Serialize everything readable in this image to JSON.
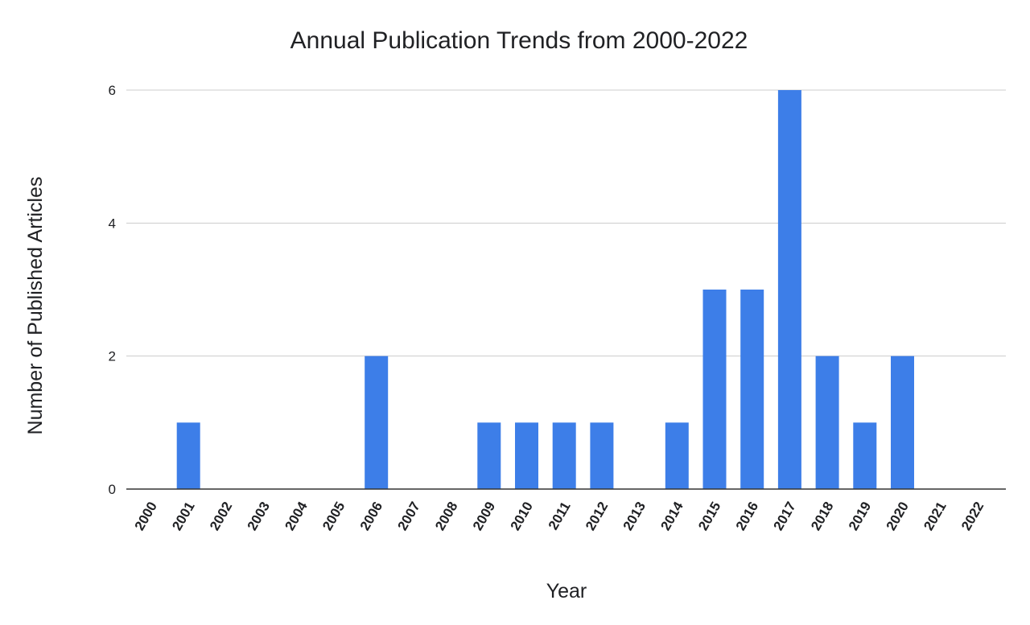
{
  "chart_data": {
    "type": "bar",
    "title": "Annual Publication Trends from 2000-2022",
    "xlabel": "Year",
    "ylabel": "Number of Published Articles",
    "categories": [
      "2000",
      "2001",
      "2002",
      "2003",
      "2004",
      "2005",
      "2006",
      "2007",
      "2008",
      "2009",
      "2010",
      "2011",
      "2012",
      "2013",
      "2014",
      "2015",
      "2016",
      "2017",
      "2018",
      "2019",
      "2020",
      "2021",
      "2022"
    ],
    "values": [
      0,
      1,
      0,
      0,
      0,
      0,
      2,
      0,
      0,
      1,
      1,
      1,
      1,
      0,
      1,
      3,
      3,
      6,
      2,
      1,
      2,
      0,
      0
    ],
    "ylim": [
      0,
      6
    ],
    "yticks": [
      0,
      2,
      4,
      6
    ],
    "grid": true,
    "bar_color": "#3d7ee8"
  }
}
